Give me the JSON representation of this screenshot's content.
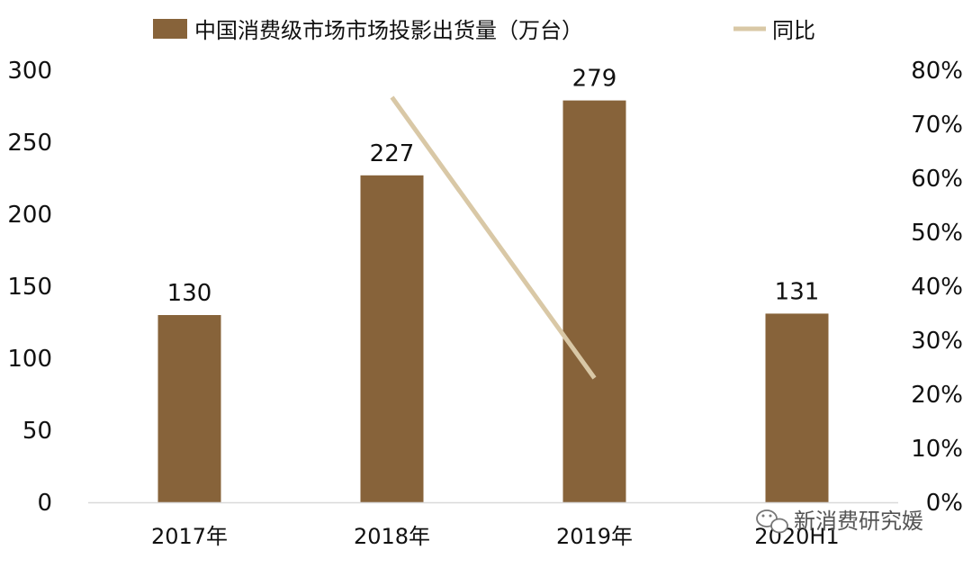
{
  "chart_data": {
    "type": "bar",
    "title": "",
    "xlabel": "",
    "ylabel": "",
    "categories": [
      "2017年",
      "2018年",
      "2019年",
      "2020H1"
    ],
    "series": [
      {
        "name": "中国消费级市场市场投影出货量（万台）",
        "kind": "bar",
        "axis": "left",
        "values": [
          130,
          227,
          279,
          131
        ],
        "color": "#87633A"
      },
      {
        "name": "同比",
        "kind": "line",
        "axis": "right",
        "values": [
          null,
          0.75,
          0.23,
          null
        ],
        "color": "#D9C8A6"
      }
    ],
    "data_labels": [
      "130",
      "227",
      "279",
      "131"
    ],
    "ylim": [
      0,
      300
    ],
    "y_ticks": [
      "0",
      "50",
      "100",
      "150",
      "200",
      "250",
      "300"
    ],
    "y2lim": [
      0,
      0.8
    ],
    "y2_ticks": [
      "0%",
      "10%",
      "20%",
      "30%",
      "40%",
      "50%",
      "60%",
      "70%",
      "80%"
    ],
    "grid": false,
    "legend_position": "top"
  },
  "watermark": {
    "text": "新消费研究媛",
    "icon": "wechat-icon"
  }
}
